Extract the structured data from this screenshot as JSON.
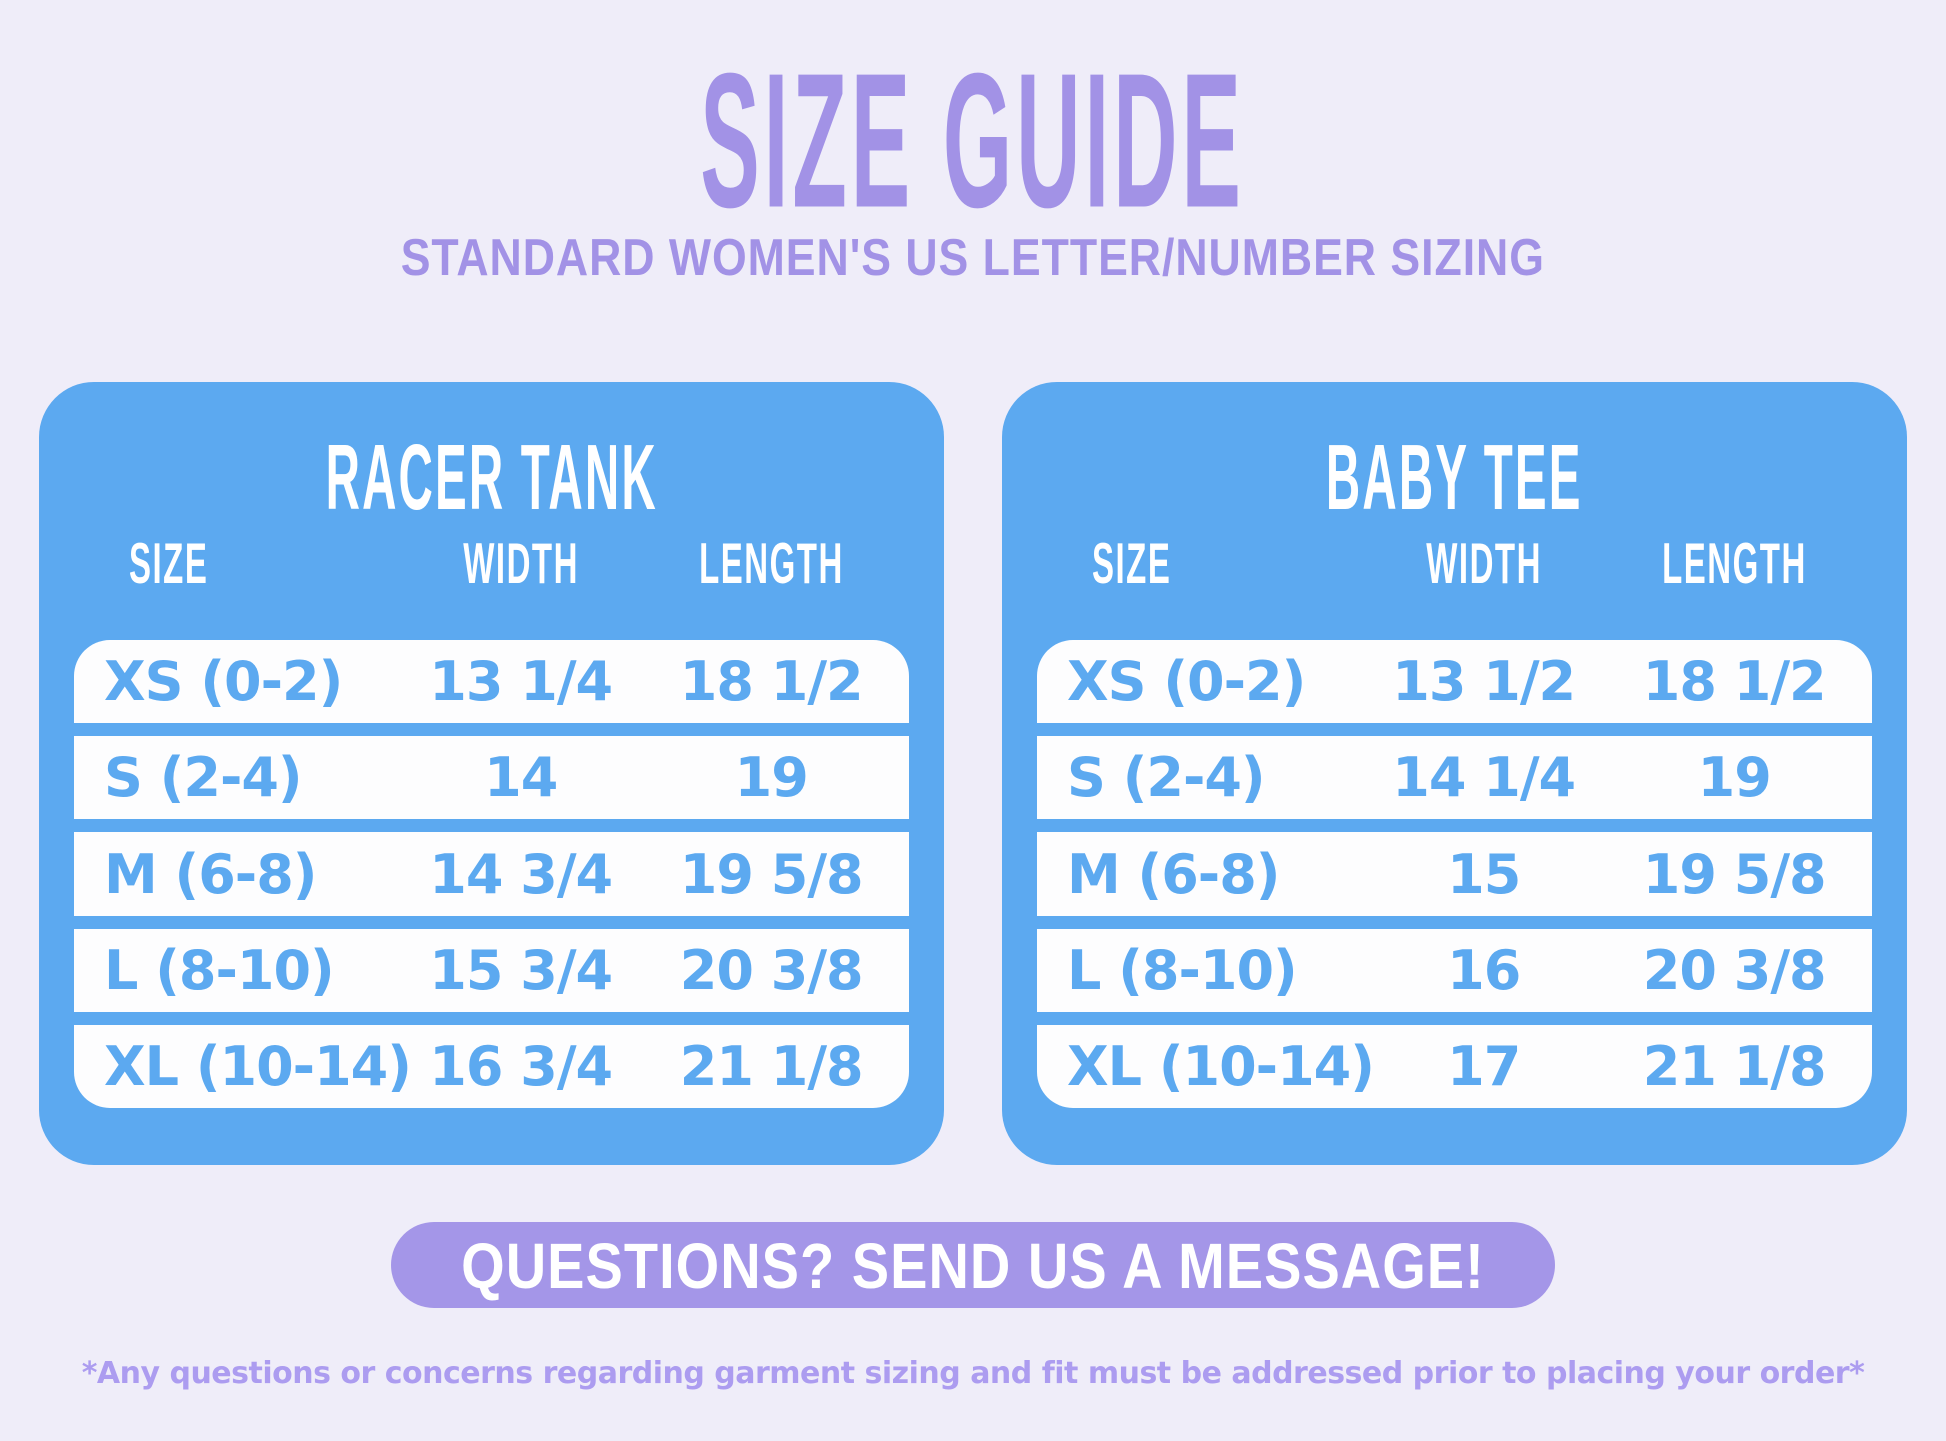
{
  "header": {
    "title": "SIZE GUIDE",
    "subtitle": "STANDARD WOMEN'S US LETTER/NUMBER SIZING"
  },
  "tables": [
    {
      "title": "RACER TANK",
      "columns": [
        "SIZE",
        "WIDTH",
        "LENGTH"
      ],
      "rows": [
        {
          "size": "XS (0-2)",
          "width": "13 1/4",
          "length": "18 1/2"
        },
        {
          "size": "S (2-4)",
          "width": "14",
          "length": "19"
        },
        {
          "size": "M (6-8)",
          "width": "14 3/4",
          "length": "19 5/8"
        },
        {
          "size": "L (8-10)",
          "width": "15 3/4",
          "length": "20 3/8"
        },
        {
          "size": "XL (10-14)",
          "width": "16 3/4",
          "length": "21 1/8"
        }
      ]
    },
    {
      "title": "BABY TEE",
      "columns": [
        "SIZE",
        "WIDTH",
        "LENGTH"
      ],
      "rows": [
        {
          "size": "XS (0-2)",
          "width": "13 1/2",
          "length": "18 1/2"
        },
        {
          "size": "S (2-4)",
          "width": "14 1/4",
          "length": "19"
        },
        {
          "size": "M (6-8)",
          "width": "15",
          "length": "19 5/8"
        },
        {
          "size": "L (8-10)",
          "width": "16",
          "length": "20 3/8"
        },
        {
          "size": "XL (10-14)",
          "width": "17",
          "length": "21 1/8"
        }
      ]
    }
  ],
  "footer": {
    "cta": "QUESTIONS? SEND US A MESSAGE!",
    "note": "*Any questions or concerns regarding garment sizing and fit must be addressed prior to placing your order*"
  },
  "colors": {
    "background": "#EFEDF9",
    "accent_purple": "#A292E6",
    "footnote_purple": "#AC9CF0",
    "pill_purple": "#A496E8",
    "card_blue": "#5CA9F0",
    "row_white": "#FDFDFE"
  }
}
